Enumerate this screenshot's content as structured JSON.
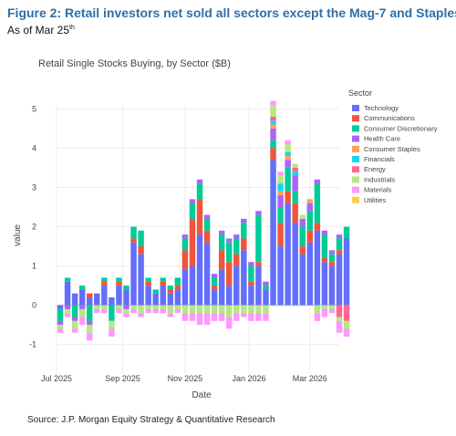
{
  "figure": {
    "title": "Figure 2: Retail investors net sold all sectors except the Mag-7 and Staples",
    "subtitle": "As of Mar 25",
    "subtitle_sup": "th",
    "source": "Source: J.P. Morgan Equity Strategy & Quantitative Research"
  },
  "colors": {
    "Technology": "#636efa",
    "Communications": "#ef553b",
    "Consumer Discretionary": "#00cc96",
    "Health Care": "#ab63fa",
    "Consumer Staples": "#ffa15a",
    "Financials": "#19d3f3",
    "Energy": "#ff6692",
    "Industrials": "#b6e880",
    "Materials": "#ff97ff",
    "Utilities": "#fecb52"
  },
  "chart_data": {
    "type": "bar",
    "stacked": true,
    "title": "Retail Single Stocks Buying, by Sector ($B)",
    "xlabel": "Date",
    "ylabel": "value",
    "ylim": [
      -1.75,
      5.1
    ],
    "yticks": [
      -1,
      0,
      1,
      2,
      3,
      4,
      5
    ],
    "ytick_labels": [
      "-1",
      "0",
      "1",
      "2",
      "3",
      "4",
      "5"
    ],
    "xlim": [
      0,
      38.5
    ],
    "xticks": [
      {
        "label": "Jul 2025",
        "pos": 0
      },
      {
        "label": "Sep 2025",
        "pos": 9
      },
      {
        "label": "Nov 2025",
        "pos": 17.5
      },
      {
        "label": "Jan 2026",
        "pos": 26.2
      },
      {
        "label": "Mar 2026",
        "pos": 34.5
      }
    ],
    "legend": {
      "title": "Sector",
      "placement": "right"
    },
    "grid": true,
    "series": [
      {
        "name": "Technology",
        "values": [
          -0.1,
          0.6,
          0.3,
          0.4,
          0.2,
          0.3,
          0.5,
          0.2,
          0.5,
          0.4,
          1.6,
          1.3,
          0.5,
          0.3,
          0.5,
          0.3,
          0.4,
          0.9,
          1.0,
          1.8,
          1.6,
          0.4,
          0.9,
          0.5,
          1.0,
          1.4,
          0.5,
          1.0,
          0.4,
          3.7,
          1.5,
          2.6,
          2.1,
          1.3,
          1.6,
          1.9,
          1.1,
          1.0,
          1.3,
          1.7
        ]
      },
      {
        "name": "Communications",
        "values": [
          0.0,
          0.0,
          0.0,
          0.0,
          0.1,
          0.0,
          0.1,
          0.0,
          0.1,
          0.0,
          0.1,
          0.2,
          0.1,
          0.0,
          0.1,
          0.1,
          0.1,
          0.5,
          1.2,
          0.9,
          0.3,
          0.1,
          0.5,
          0.6,
          0.3,
          0.3,
          0.1,
          0.1,
          0.0,
          0.3,
          0.6,
          0.3,
          0.5,
          0.2,
          0.3,
          0.2,
          0.1,
          0.1,
          0.1,
          0.0
        ]
      },
      {
        "name": "Consumer Discretionary",
        "values": [
          -0.3,
          0.1,
          -0.3,
          0.1,
          -0.4,
          0.0,
          0.1,
          -0.4,
          0.1,
          0.1,
          0.3,
          0.4,
          0.1,
          0.1,
          0.1,
          0.1,
          0.2,
          0.3,
          0.4,
          0.4,
          0.3,
          0.2,
          0.4,
          0.5,
          0.4,
          0.4,
          0.4,
          1.2,
          0.1,
          0.2,
          0.4,
          0.6,
          0.3,
          0.5,
          0.5,
          1.0,
          0.6,
          0.2,
          0.3,
          0.3
        ]
      },
      {
        "name": "Health Care",
        "values": [
          -0.1,
          -0.1,
          -0.1,
          -0.1,
          -0.1,
          0.0,
          0.0,
          0.0,
          0.0,
          -0.1,
          0.0,
          0.0,
          0.0,
          0.0,
          0.0,
          0.0,
          0.0,
          0.1,
          0.1,
          0.1,
          0.1,
          0.1,
          0.1,
          0.1,
          0.1,
          0.1,
          0.1,
          0.1,
          0.1,
          0.3,
          0.3,
          0.2,
          0.4,
          0.2,
          0.2,
          0.1,
          0.1,
          0.1,
          0.1,
          0.0
        ]
      },
      {
        "name": "Consumer Staples",
        "values": [
          0.0,
          0.0,
          0.0,
          0.0,
          0.0,
          0.0,
          0.0,
          0.0,
          0.0,
          0.0,
          0.0,
          0.0,
          0.0,
          0.0,
          0.0,
          0.0,
          0.0,
          0.0,
          0.0,
          0.0,
          0.0,
          0.0,
          0.0,
          0.0,
          0.0,
          0.0,
          0.0,
          0.0,
          0.0,
          0.1,
          0.1,
          0.1,
          0.0,
          0.0,
          0.1,
          0.0,
          0.0,
          0.0,
          0.0,
          0.0
        ]
      },
      {
        "name": "Financials",
        "values": [
          0.0,
          0.0,
          0.0,
          0.0,
          0.0,
          0.0,
          0.0,
          0.0,
          0.0,
          0.0,
          0.0,
          0.0,
          0.0,
          0.0,
          0.0,
          0.0,
          0.0,
          0.0,
          0.0,
          0.0,
          0.0,
          0.0,
          0.0,
          0.0,
          0.0,
          0.0,
          0.0,
          0.0,
          0.0,
          0.1,
          0.2,
          0.1,
          0.1,
          0.0,
          0.0,
          0.0,
          0.0,
          0.0,
          0.0,
          0.0
        ]
      },
      {
        "name": "Energy",
        "values": [
          0.0,
          0.0,
          0.0,
          0.0,
          0.0,
          0.0,
          0.0,
          0.0,
          0.0,
          0.0,
          0.0,
          0.0,
          0.0,
          0.0,
          0.0,
          0.0,
          0.0,
          0.0,
          0.0,
          0.0,
          0.0,
          0.0,
          0.0,
          0.0,
          0.0,
          0.0,
          0.0,
          0.0,
          0.0,
          0.1,
          0.0,
          0.0,
          0.1,
          0.0,
          0.0,
          0.0,
          0.0,
          0.0,
          -0.3,
          -0.4
        ]
      },
      {
        "name": "Industrials",
        "values": [
          -0.1,
          -0.1,
          -0.2,
          -0.2,
          -0.2,
          -0.1,
          -0.1,
          -0.2,
          -0.1,
          -0.1,
          -0.1,
          -0.2,
          -0.1,
          -0.1,
          -0.1,
          -0.2,
          -0.1,
          -0.2,
          -0.2,
          -0.2,
          -0.2,
          -0.2,
          -0.2,
          -0.3,
          -0.2,
          -0.2,
          -0.2,
          -0.2,
          -0.2,
          0.3,
          0.2,
          0.2,
          0.1,
          0.1,
          0.0,
          -0.2,
          -0.1,
          -0.1,
          -0.1,
          -0.2
        ]
      },
      {
        "name": "Materials",
        "values": [
          -0.1,
          -0.1,
          -0.1,
          -0.2,
          -0.2,
          -0.1,
          -0.1,
          -0.2,
          -0.1,
          -0.1,
          -0.1,
          -0.1,
          -0.1,
          -0.1,
          -0.1,
          -0.1,
          -0.1,
          -0.2,
          -0.2,
          -0.3,
          -0.3,
          -0.2,
          -0.2,
          -0.3,
          -0.2,
          -0.1,
          -0.2,
          -0.2,
          -0.2,
          0.1,
          0.1,
          0.1,
          0.0,
          0.0,
          0.0,
          -0.2,
          -0.2,
          -0.1,
          -0.3,
          -0.2
        ]
      },
      {
        "name": "Utilities",
        "values": [
          0.0,
          0.0,
          0.0,
          0.0,
          0.0,
          0.0,
          0.0,
          0.0,
          0.0,
          0.0,
          0.0,
          0.0,
          0.0,
          0.0,
          0.0,
          0.0,
          0.0,
          0.0,
          0.0,
          0.0,
          0.0,
          0.0,
          0.0,
          0.0,
          0.0,
          0.0,
          0.0,
          0.0,
          0.0,
          0.0,
          0.0,
          0.0,
          0.0,
          0.0,
          0.0,
          0.0,
          0.0,
          0.0,
          0.0,
          0.0
        ]
      }
    ]
  }
}
